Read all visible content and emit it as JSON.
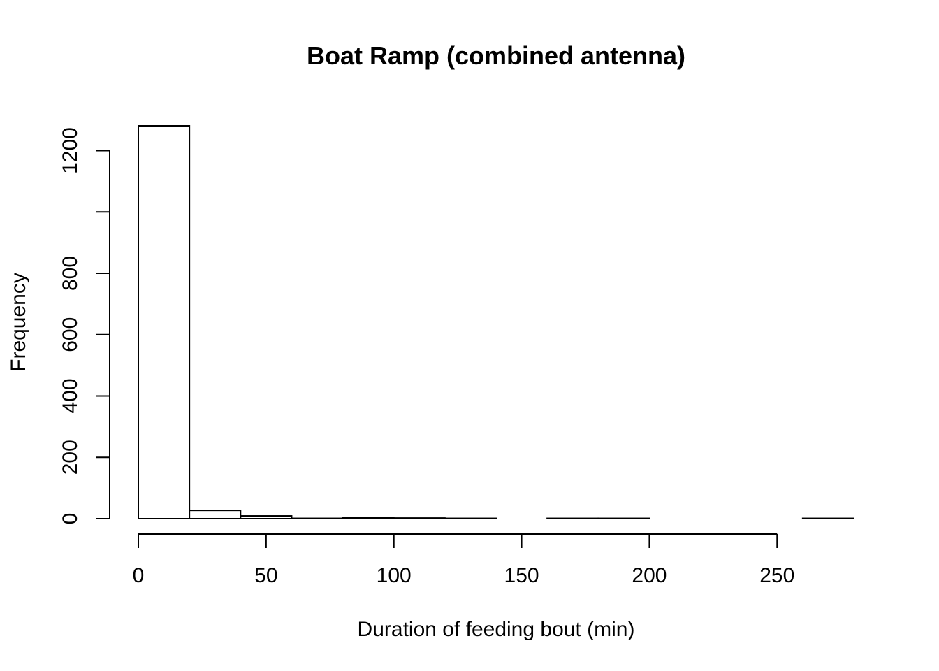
{
  "chart_data": {
    "type": "bar",
    "title": "Boat Ramp (combined antenna)",
    "xlabel": "Duration of feeding bout (min)",
    "ylabel": "Frequency",
    "bins": [
      {
        "x0": 0,
        "x1": 20,
        "count": 1281
      },
      {
        "x0": 20,
        "x1": 40,
        "count": 27
      },
      {
        "x0": 40,
        "x1": 60,
        "count": 9
      },
      {
        "x0": 60,
        "x1": 80,
        "count": 1
      },
      {
        "x0": 80,
        "x1": 100,
        "count": 3
      },
      {
        "x0": 100,
        "x1": 120,
        "count": 2
      },
      {
        "x0": 120,
        "x1": 140,
        "count": 1
      },
      {
        "x0": 140,
        "x1": 160,
        "count": 0
      },
      {
        "x0": 160,
        "x1": 180,
        "count": 1
      },
      {
        "x0": 180,
        "x1": 200,
        "count": 1
      },
      {
        "x0": 200,
        "x1": 220,
        "count": 0
      },
      {
        "x0": 220,
        "x1": 240,
        "count": 0
      },
      {
        "x0": 240,
        "x1": 260,
        "count": 0
      },
      {
        "x0": 260,
        "x1": 280,
        "count": 1
      }
    ],
    "xlim": [
      0,
      280
    ],
    "ylim": [
      0,
      1281
    ],
    "xticks": [
      0,
      50,
      100,
      150,
      200,
      250
    ],
    "yticks": [
      0,
      200,
      400,
      600,
      800,
      1000,
      1200
    ],
    "ytick_labels": [
      "0",
      "200",
      "400",
      "600",
      "800",
      "",
      "1200"
    ],
    "grid": false,
    "bar_fill": "#ffffff",
    "bar_stroke": "#000000"
  }
}
